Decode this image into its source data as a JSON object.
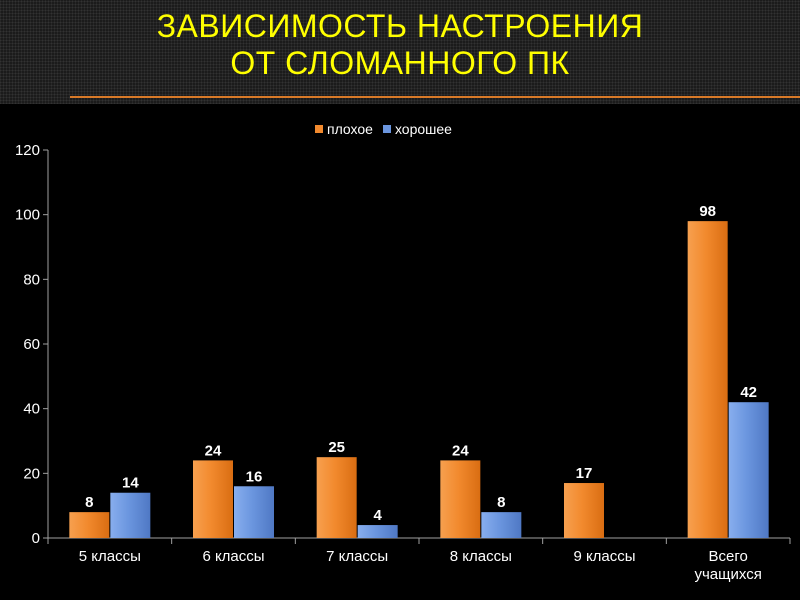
{
  "title_lines": [
    "ЗАВИСИМОСТЬ НАСТРОЕНИЯ",
    "ОТ СЛОМАННОГО ПК"
  ],
  "colors": {
    "title": "#ffff00",
    "series_bad": "#f28a2e",
    "series_good": "#6b96df",
    "axis": "#a0a0a0",
    "text": "#ffffff",
    "rule": "#d97a28"
  },
  "chart_data": {
    "type": "bar",
    "categories": [
      "5 классы",
      "6 классы",
      "7 классы",
      "8 классы",
      "9 классы",
      "Всего учащихся"
    ],
    "category_lines": [
      [
        "5 классы"
      ],
      [
        "6 классы"
      ],
      [
        "7 классы"
      ],
      [
        "8 классы"
      ],
      [
        "9 классы"
      ],
      [
        "Всего",
        "учащихся"
      ]
    ],
    "series": [
      {
        "name": "плохое",
        "values": [
          8,
          24,
          25,
          24,
          17,
          98
        ]
      },
      {
        "name": "хорошее",
        "values": [
          14,
          16,
          4,
          8,
          null,
          42
        ]
      }
    ],
    "ylim": [
      0,
      120
    ],
    "yticks": [
      "0",
      "20",
      "40",
      "60",
      "80",
      "100",
      "120"
    ],
    "legend_position": "top",
    "grid": false,
    "data_labels": true
  }
}
